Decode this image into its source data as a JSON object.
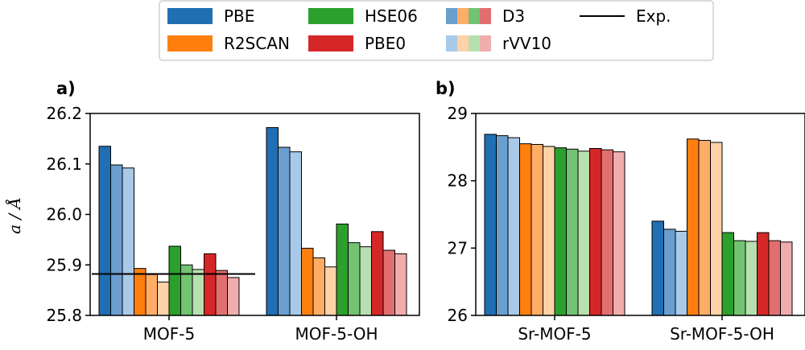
{
  "colors": {
    "PBE": [
      "#1f6fb2",
      "#6a9fd0",
      "#a9c9e8"
    ],
    "R2SCAN": [
      "#ff7f0e",
      "#ffad66",
      "#ffd2a8"
    ],
    "HSE06": [
      "#2ca02c",
      "#72c372",
      "#b7e0b0"
    ],
    "PBE0": [
      "#d62728",
      "#e26f6f",
      "#f0adad"
    ]
  },
  "legend": {
    "entries": [
      {
        "key": "PBE",
        "label": "PBE"
      },
      {
        "key": "R2SCAN",
        "label": "R2SCAN"
      },
      {
        "key": "HSE06",
        "label": "HSE06"
      },
      {
        "key": "PBE0",
        "label": "PBE0"
      },
      {
        "key": "D3",
        "label": "D3"
      },
      {
        "key": "rVV10",
        "label": "rVV10"
      },
      {
        "key": "Exp",
        "label": "Exp."
      }
    ]
  },
  "chart_data": [
    {
      "type": "bar",
      "panel_label": "a)",
      "ylabel": "a / Å",
      "ylim": [
        25.8,
        26.2
      ],
      "yticks": [
        "25.8",
        "25.9",
        "26.0",
        "26.1",
        "26.2"
      ],
      "categories": [
        "MOF-5",
        "MOF-5-OH"
      ],
      "experimental": 25.882,
      "series": [
        {
          "functional": "PBE",
          "variant": "base",
          "values": [
            26.135,
            26.172
          ]
        },
        {
          "functional": "PBE",
          "variant": "D3",
          "values": [
            26.098,
            26.133
          ]
        },
        {
          "functional": "PBE",
          "variant": "rVV10",
          "values": [
            26.092,
            26.124
          ]
        },
        {
          "functional": "R2SCAN",
          "variant": "base",
          "values": [
            25.893,
            25.933
          ]
        },
        {
          "functional": "R2SCAN",
          "variant": "D3",
          "values": [
            25.881,
            25.914
          ]
        },
        {
          "functional": "R2SCAN",
          "variant": "rVV10",
          "values": [
            25.866,
            25.896
          ]
        },
        {
          "functional": "HSE06",
          "variant": "base",
          "values": [
            25.937,
            25.981
          ]
        },
        {
          "functional": "HSE06",
          "variant": "D3",
          "values": [
            25.9,
            25.944
          ]
        },
        {
          "functional": "HSE06",
          "variant": "rVV10",
          "values": [
            25.891,
            25.936
          ]
        },
        {
          "functional": "PBE0",
          "variant": "base",
          "values": [
            25.922,
            25.966
          ]
        },
        {
          "functional": "PBE0",
          "variant": "D3",
          "values": [
            25.889,
            25.929
          ]
        },
        {
          "functional": "PBE0",
          "variant": "rVV10",
          "values": [
            25.875,
            25.922
          ]
        }
      ]
    },
    {
      "type": "bar",
      "panel_label": "b)",
      "ylabel": "",
      "ylim": [
        26,
        29
      ],
      "yticks": [
        "26",
        "27",
        "28",
        "29"
      ],
      "categories": [
        "Sr-MOF-5",
        "Sr-MOF-5-OH"
      ],
      "series": [
        {
          "functional": "PBE",
          "variant": "base",
          "values": [
            28.69,
            27.4
          ]
        },
        {
          "functional": "PBE",
          "variant": "D3",
          "values": [
            28.67,
            27.28
          ]
        },
        {
          "functional": "PBE",
          "variant": "rVV10",
          "values": [
            28.64,
            27.25
          ]
        },
        {
          "functional": "R2SCAN",
          "variant": "base",
          "values": [
            28.55,
            28.62
          ]
        },
        {
          "functional": "R2SCAN",
          "variant": "D3",
          "values": [
            28.54,
            28.6
          ]
        },
        {
          "functional": "R2SCAN",
          "variant": "rVV10",
          "values": [
            28.51,
            28.57
          ]
        },
        {
          "functional": "HSE06",
          "variant": "base",
          "values": [
            28.49,
            27.23
          ]
        },
        {
          "functional": "HSE06",
          "variant": "D3",
          "values": [
            28.47,
            27.11
          ]
        },
        {
          "functional": "HSE06",
          "variant": "rVV10",
          "values": [
            28.44,
            27.1
          ]
        },
        {
          "functional": "PBE0",
          "variant": "base",
          "values": [
            28.48,
            27.23
          ]
        },
        {
          "functional": "PBE0",
          "variant": "D3",
          "values": [
            28.46,
            27.11
          ]
        },
        {
          "functional": "PBE0",
          "variant": "rVV10",
          "values": [
            28.43,
            27.09
          ]
        }
      ]
    }
  ]
}
